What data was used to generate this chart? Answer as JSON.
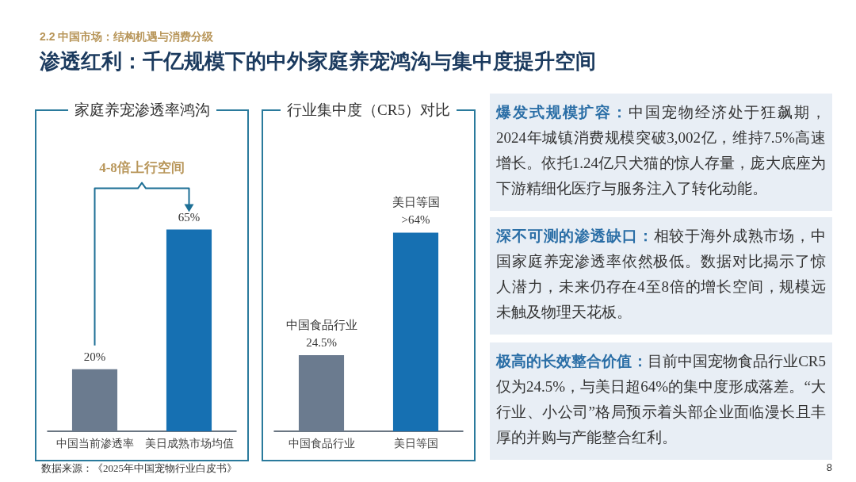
{
  "chart_data": [
    {
      "type": "other",
      "subtitle": "2.2 中国市场：结构机遇与消费分级",
      "title": "渗透红利：千亿规模下的中外家庭养宠鸿沟与集中度提升空间",
      "annotations": [
        "数据来源：《2025年中国宠物行业白皮书》",
        "8"
      ]
    },
    {
      "type": "bar",
      "title": "家庭养宠渗透率鸿沟",
      "categories": [
        "中国当前渗透率",
        "美日成熟市场均值"
      ],
      "values": [
        20,
        65
      ],
      "colors": [
        "#6b7b8f",
        "#1670b2"
      ],
      "value_labels": [
        "20%",
        "65%"
      ],
      "annotations": [
        "4-8倍上行空间"
      ]
    },
    {
      "type": "bar",
      "title": "行业集中度（CR5）对比",
      "categories": [
        "中国食品行业",
        "美日等国"
      ],
      "values": [
        24.5,
        64
      ],
      "colors": [
        "#6b7b8f",
        "#1670b2"
      ],
      "value_labels": [
        "中国食品行业\n24.5%",
        "美日等国\n>64%"
      ]
    },
    {
      "type": "other",
      "title": "爆发式规模扩容：",
      "annotations": [
        "中国宠物经济处于狂飙期，2024年城镇消费规模突破3,002亿，维持7.5%高速增长。依托1.24亿只犬猫的惊人存量，庞大底座为下游精细化医疗与服务注入了转化动能。"
      ]
    },
    {
      "type": "other",
      "title": "深不可测的渗透缺口：",
      "annotations": [
        "相较于海外成熟市场，中国家庭养宠渗透率依然极低。数据对比揭示了惊人潜力，未来仍存在4至8倍的增长空间，规模远未触及物理天花板。"
      ]
    },
    {
      "type": "other",
      "title": "极高的长效整合价值：",
      "annotations": [
        "目前中国宠物食品行业CR5仅为24.5%，与美日超64%的集中度形成落差。“大行业、小公司”格局预示着头部企业面临漫长且丰厚的并购与产能整合红利。"
      ]
    }
  ]
}
